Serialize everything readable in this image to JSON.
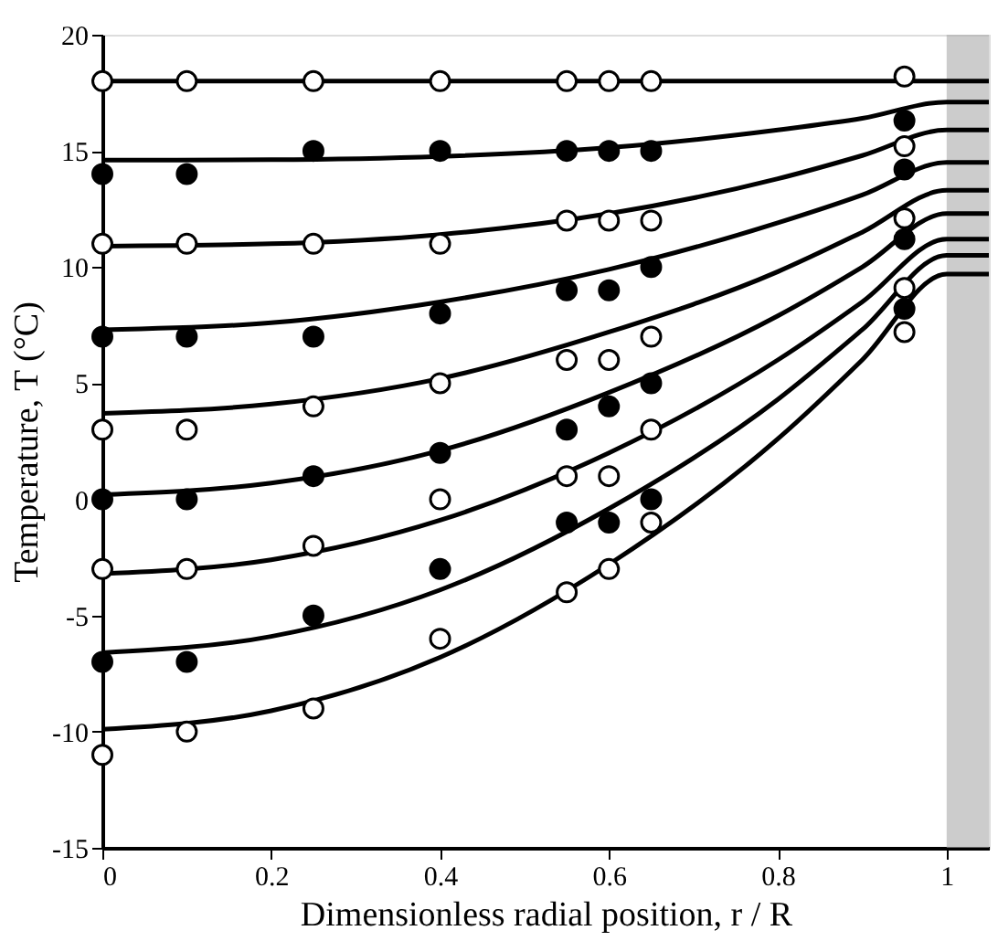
{
  "chart_data": {
    "type": "line",
    "xlabel": "Dimensionless radial position, r / R",
    "ylabel": "Temperature, T (°C)",
    "xlim": [
      0,
      1.05
    ],
    "xticks": [
      0,
      0.2,
      0.4,
      0.6,
      0.8,
      1
    ],
    "ylim": [
      -15,
      20
    ],
    "yticks": [
      -15,
      -10,
      -5,
      0,
      5,
      10,
      15,
      20
    ],
    "grid": false,
    "line_style": "solid",
    "bands": [
      {
        "axis": "x",
        "from": 1,
        "to": 1.05,
        "color": "#aaaaaa"
      }
    ],
    "series": [
      {
        "color": "#000000",
        "x": [
          0,
          0.2,
          0.4,
          0.6,
          0.8,
          0.9,
          1.0,
          1.05
        ],
        "values": [
          18,
          18,
          18,
          18,
          18,
          18,
          18,
          18
        ]
      },
      {
        "color": "#000000",
        "x": [
          0,
          0.2,
          0.4,
          0.6,
          0.8,
          0.9,
          1.0,
          1.05
        ],
        "values": [
          14.6,
          14.62,
          14.76,
          15.14,
          15.9,
          16.4,
          17.1,
          17.1
        ]
      },
      {
        "color": "#000000",
        "x": [
          0,
          0.2,
          0.4,
          0.6,
          0.8,
          0.9,
          1.0,
          1.05
        ],
        "values": [
          10.9,
          11.0,
          11.4,
          12.3,
          13.8,
          14.8,
          15.9,
          15.9
        ]
      },
      {
        "color": "#000000",
        "x": [
          0,
          0.2,
          0.4,
          0.6,
          0.8,
          0.9,
          1.0,
          1.05
        ],
        "values": [
          7.3,
          7.6,
          8.5,
          9.9,
          11.9,
          13.1,
          14.5,
          14.5
        ]
      },
      {
        "color": "#000000",
        "x": [
          0,
          0.2,
          0.4,
          0.6,
          0.8,
          0.9,
          1.0,
          1.05
        ],
        "values": [
          3.7,
          4.1,
          5.2,
          7.2,
          9.8,
          11.5,
          13.3,
          13.3
        ]
      },
      {
        "color": "#000000",
        "x": [
          0,
          0.2,
          0.4,
          0.6,
          0.8,
          0.9,
          1.0,
          1.05
        ],
        "values": [
          0.2,
          0.7,
          2.1,
          4.6,
          7.9,
          10.0,
          12.3,
          12.3
        ]
      },
      {
        "color": "#000000",
        "x": [
          0,
          0.2,
          0.4,
          0.6,
          0.8,
          0.9,
          1.0,
          1.05
        ],
        "values": [
          -3.2,
          -2.6,
          -0.9,
          2.0,
          6.0,
          8.5,
          11.2,
          11.2
        ]
      },
      {
        "color": "#000000",
        "x": [
          0,
          0.2,
          0.4,
          0.6,
          0.8,
          0.9,
          1.0,
          1.05
        ],
        "values": [
          -6.6,
          -5.9,
          -3.9,
          -0.4,
          4.3,
          7.3,
          10.5,
          10.5
        ]
      },
      {
        "color": "#000000",
        "x": [
          0,
          0.2,
          0.4,
          0.6,
          0.8,
          0.9,
          1.0,
          1.05
        ],
        "values": [
          -9.9,
          -9.1,
          -6.8,
          -2.8,
          2.6,
          6.0,
          9.7,
          9.7
        ]
      },
      {
        "type": "scatter",
        "marker": "circle",
        "color": "#000000",
        "x": [
          0,
          0,
          0,
          0,
          0.1,
          0.1,
          0.1,
          0.1,
          0.25,
          0.25,
          0.25,
          0.25,
          0.4,
          0.4,
          0.4,
          0.4,
          0.55,
          0.55,
          0.55,
          0.55,
          0.6,
          0.6,
          0.6,
          0.6,
          0.65,
          0.65,
          0.65,
          0.65,
          0.95,
          0.95,
          0.95,
          0.95
        ],
        "values": [
          14,
          7,
          0,
          -7,
          14,
          7,
          0,
          -7,
          15,
          7,
          1,
          -5,
          15,
          8,
          2,
          -3,
          15,
          9,
          3,
          -1,
          15,
          9,
          4,
          -1,
          15,
          10,
          5,
          0,
          16.3,
          14.2,
          11.2,
          8.2
        ]
      },
      {
        "type": "scatter",
        "marker": "circle",
        "color": "#ffffff",
        "x": [
          0,
          0,
          0,
          0,
          0,
          0.1,
          0.1,
          0.1,
          0.1,
          0.1,
          0.25,
          0.25,
          0.25,
          0.25,
          0.25,
          0.4,
          0.4,
          0.4,
          0.4,
          0.4,
          0.55,
          0.55,
          0.55,
          0.55,
          0.55,
          0.6,
          0.6,
          0.6,
          0.6,
          0.6,
          0.65,
          0.65,
          0.65,
          0.65,
          0.65,
          0.95,
          0.95,
          0.95,
          0.95,
          0.95
        ],
        "values": [
          18,
          11,
          3,
          -3,
          -11,
          18,
          11,
          3,
          -3,
          -10,
          18,
          11,
          4,
          -2,
          -9,
          18,
          11,
          5,
          0,
          -6,
          18,
          12,
          6,
          1,
          -4,
          18,
          12,
          6,
          1,
          -3,
          18,
          12,
          7,
          3,
          -1,
          18.2,
          15.2,
          12.1,
          9.1,
          7.2
        ]
      }
    ]
  }
}
